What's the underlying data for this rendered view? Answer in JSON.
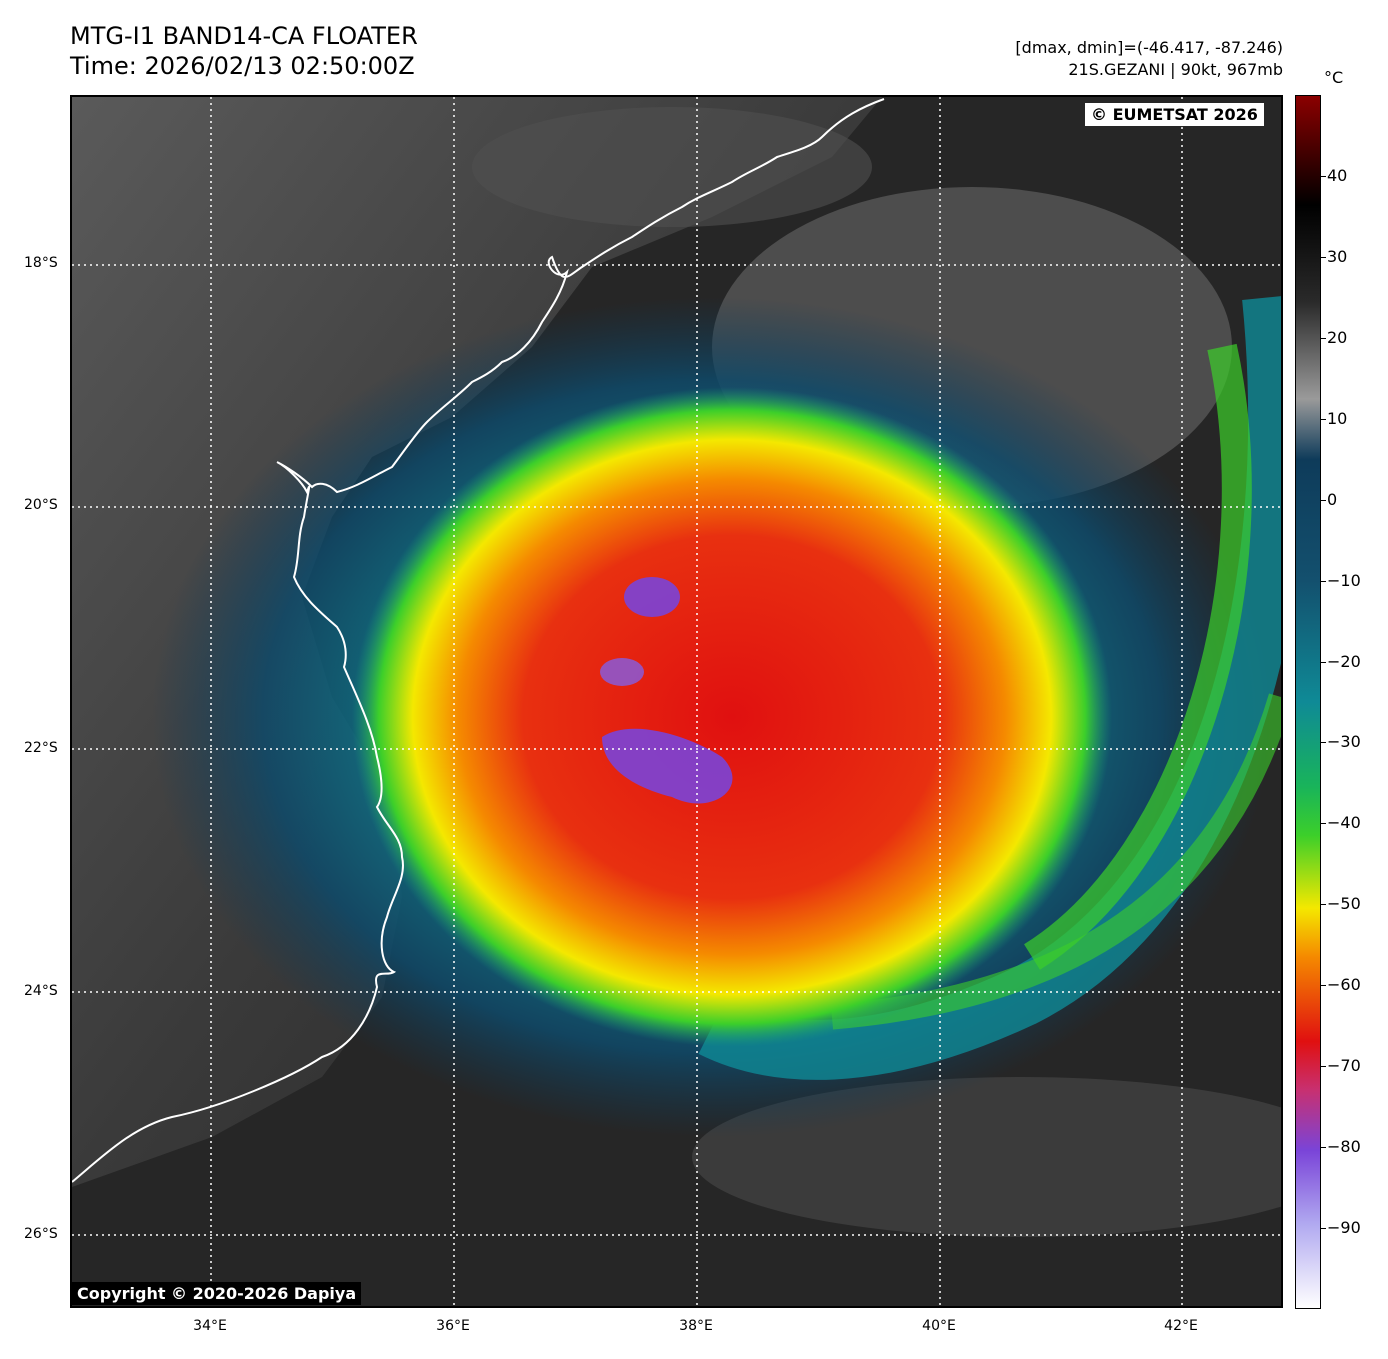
{
  "header": {
    "title_line1": "MTG-I1 BAND14-CA FLOATER",
    "title_line2": "Time: 2026/02/13 02:50:00Z",
    "info_line1": "[dmax, dmin]=(-46.417, -87.246)",
    "info_line2": "21S.GEZANI | 90kt, 967mb"
  },
  "map": {
    "lat_labels": [
      "18°S",
      "20°S",
      "22°S",
      "24°S",
      "26°S"
    ],
    "lon_labels": [
      "34°E",
      "36°E",
      "38°E",
      "40°E",
      "42°E"
    ],
    "copyright_top": "© EUMETSAT 2026",
    "copyright_bottom": "Copyright © 2020-2026 Dapiya"
  },
  "colorbar": {
    "unit": "°C",
    "ticks": [
      "40",
      "30",
      "20",
      "10",
      "0",
      "−10",
      "−20",
      "−30",
      "−40",
      "−50",
      "−60",
      "−70",
      "−80",
      "−90"
    ],
    "range": [
      50,
      -100
    ],
    "colors": {
      "warm_top": "#8b0000",
      "black": "#000000",
      "grey": "#9a9a9a",
      "dark_blue": "#0e3b5a",
      "teal": "#0f8a96",
      "green": "#3ccf2a",
      "yellow": "#f4e800",
      "orange": "#f58a00",
      "red": "#e01010",
      "purple": "#7a44d8",
      "white": "#ffffff"
    }
  }
}
